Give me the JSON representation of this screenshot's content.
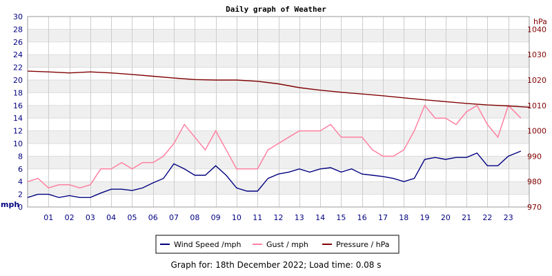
{
  "chart_data": {
    "type": "line",
    "title": "Daily graph of Weather",
    "x_tick_labels": [
      "01",
      "02",
      "03",
      "04",
      "05",
      "06",
      "07",
      "08",
      "09",
      "10",
      "11",
      "12",
      "13",
      "14",
      "15",
      "16",
      "17",
      "18",
      "19",
      "20",
      "21",
      "22",
      "23"
    ],
    "x_range_hours": [
      0,
      24
    ],
    "left_axis": {
      "unit": "mph",
      "range": [
        0,
        30
      ],
      "ticks": [
        0,
        2,
        4,
        6,
        8,
        10,
        12,
        14,
        16,
        18,
        20,
        22,
        24,
        26,
        28,
        30
      ],
      "color": "#000080"
    },
    "right_axis": {
      "unit": "hPa",
      "range": [
        970,
        1045
      ],
      "ticks": [
        970,
        980,
        990,
        1000,
        1010,
        1020,
        1030,
        1040
      ],
      "color": "#800000"
    },
    "grid": true,
    "legend_position": "bottom",
    "series": [
      {
        "name": "Wind Speed /mph",
        "axis": "left",
        "color": "#000080",
        "x": [
          0,
          0.5,
          1,
          1.5,
          2,
          2.5,
          3,
          3.5,
          4,
          4.5,
          5,
          5.5,
          6,
          6.5,
          7,
          7.5,
          8,
          8.5,
          9,
          9.5,
          10,
          10.5,
          11,
          11.5,
          12,
          12.5,
          13,
          13.5,
          14,
          14.5,
          15,
          15.5,
          16,
          16.5,
          17,
          17.5,
          18,
          18.5,
          19,
          19.5,
          20,
          20.5,
          21,
          21.5,
          22,
          22.5,
          23,
          23.6
        ],
        "y": [
          1.5,
          2,
          2,
          1.5,
          1.8,
          1.5,
          1.5,
          2.2,
          2.8,
          2.8,
          2.6,
          3,
          3.8,
          4.5,
          6.8,
          6,
          5,
          5,
          6.5,
          5,
          3,
          2.5,
          2.5,
          4.5,
          5.2,
          5.5,
          6,
          5.5,
          6,
          6.2,
          5.5,
          6,
          5.2,
          5,
          4.8,
          4.5,
          4,
          4.5,
          7.5,
          7.8,
          7.5,
          7.8,
          7.8,
          8.5,
          6.5,
          6.5,
          8,
          8.8
        ]
      },
      {
        "name": "Gust / mph",
        "axis": "left",
        "color": "#ff80a0",
        "x": [
          0,
          0.5,
          1,
          1.5,
          2,
          2.5,
          3,
          3.5,
          4,
          4.5,
          5,
          5.5,
          6,
          6.5,
          7,
          7.5,
          8,
          8.5,
          9,
          9.5,
          10,
          10.5,
          11,
          11.5,
          12,
          12.5,
          13,
          13.5,
          14,
          14.5,
          15,
          15.5,
          16,
          16.5,
          17,
          17.5,
          18,
          18.5,
          19,
          19.5,
          20,
          20.5,
          21,
          21.5,
          22,
          22.5,
          23,
          23.6
        ],
        "y": [
          4,
          4.5,
          3,
          3.5,
          3.5,
          3,
          3.5,
          6,
          6,
          7,
          6,
          7,
          7,
          8,
          10,
          13,
          11,
          9,
          12,
          9,
          6,
          6,
          6,
          9,
          10,
          11,
          12,
          12,
          12,
          13,
          11,
          11,
          11,
          9,
          8,
          8,
          9,
          12,
          16,
          14,
          14,
          13,
          15,
          16,
          13,
          11,
          16,
          14
        ]
      },
      {
        "name": "Pressure / hPa",
        "axis": "right",
        "color": "#800000",
        "x": [
          0,
          1,
          2,
          3,
          4,
          5,
          6,
          7,
          8,
          9,
          10,
          11,
          12,
          13,
          14,
          15,
          16,
          17,
          18,
          19,
          20,
          21,
          22,
          23,
          24
        ],
        "y": [
          1023.5,
          1023.2,
          1022.8,
          1023.2,
          1022.8,
          1022.2,
          1021.5,
          1020.8,
          1020.2,
          1020.0,
          1020.0,
          1019.5,
          1018.5,
          1017.0,
          1016.0,
          1015.2,
          1014.5,
          1013.8,
          1013.0,
          1012.2,
          1011.5,
          1010.8,
          1010.2,
          1009.8,
          1009.3
        ]
      }
    ]
  },
  "footer_text": "Graph for: 18th December 2022; Load time: 0.08 s"
}
